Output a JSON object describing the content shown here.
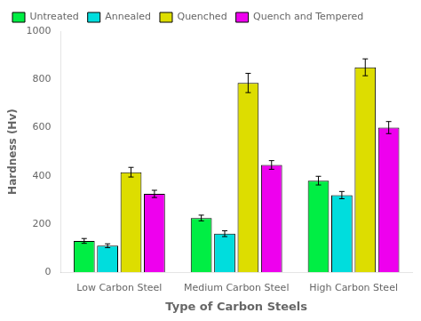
{
  "chart_data": {
    "type": "bar",
    "xlabel": "Type of Carbon Steels",
    "ylabel": "Hardness (Hv)",
    "categories": [
      "Low Carbon Steel",
      "Medium Carbon Steel",
      "High Carbon Steel"
    ],
    "series": [
      {
        "name": "Untreated",
        "color": "#00ee44",
        "values": [
          130,
          225,
          380
        ],
        "errors": [
          10,
          12,
          18
        ]
      },
      {
        "name": "Annealed",
        "color": "#00dddd",
        "values": [
          110,
          160,
          320
        ],
        "errors": [
          8,
          12,
          15
        ]
      },
      {
        "name": "Quenched",
        "color": "#dddd00",
        "values": [
          415,
          785,
          850
        ],
        "errors": [
          20,
          40,
          35
        ]
      },
      {
        "name": "Quench and Tempered",
        "color": "#ee00ee",
        "values": [
          325,
          445,
          600
        ],
        "errors": [
          15,
          18,
          25
        ]
      }
    ],
    "ylim": [
      0,
      1000
    ],
    "yticks": [
      0,
      200,
      400,
      600,
      800,
      1000
    ],
    "grid": false,
    "legend": "upper left"
  }
}
